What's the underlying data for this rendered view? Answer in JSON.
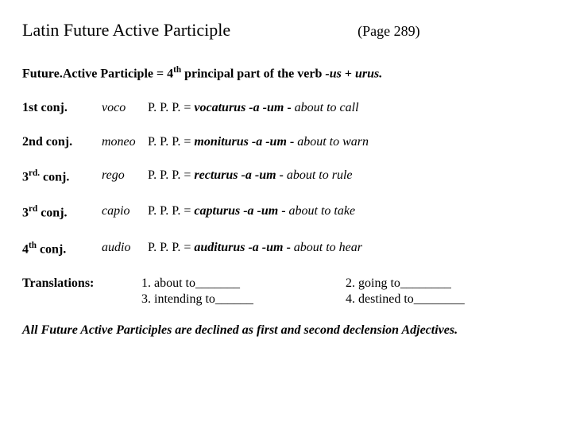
{
  "header": {
    "title": "Latin Future Active Participle",
    "page_ref": "(Page 289)"
  },
  "formula": {
    "lead_bold": "Future.Active Participle = 4",
    "sup": "th",
    "mid_bold": " principal part of the verb ",
    "bi1": "-us",
    "plus": "  + ",
    "bi2": "urus."
  },
  "rows": [
    {
      "label_pre": "1st conj.",
      "label_sup": "",
      "label_post": "",
      "verb": "voco",
      "ppp": "P. P. P.  = ",
      "form": "vocaturus -a -um",
      "dash": " - ",
      "gloss": "about to call"
    },
    {
      "label_pre": "2nd conj.",
      "label_sup": "",
      "label_post": "",
      "verb": "moneo",
      "ppp": " P. P. P.  = ",
      "form": "moniturus -a -um",
      "dash": " - ",
      "gloss": "about to warn"
    },
    {
      "label_pre": "3",
      "label_sup": "rd.",
      "label_post": " conj.",
      "verb": "rego",
      "ppp": " P. P. P.  = ",
      "form": "recturus -a -um",
      "dash": " - ",
      "gloss": "about to rule"
    },
    {
      "label_pre": "3",
      "label_sup": "rd",
      "label_post": " conj.",
      "verb": "capio",
      "ppp": " P. P. P.  = ",
      "form": "capturus -a -um",
      "dash": " - ",
      "gloss": "about to take"
    },
    {
      "label_pre": "4",
      "label_sup": "th",
      "label_post": " conj.",
      "verb": "audio",
      "ppp": " P. P. P.  = ",
      "form": "auditurus -a -um",
      "dash": " - ",
      "gloss": "about to hear"
    }
  ],
  "translations": {
    "label": "Translations:",
    "items": [
      "1. about to_______",
      "2. going to________",
      "3. intending to______",
      "4. destined to________"
    ]
  },
  "footer": "All Future Active Participles are declined as first and second declension Adjectives."
}
